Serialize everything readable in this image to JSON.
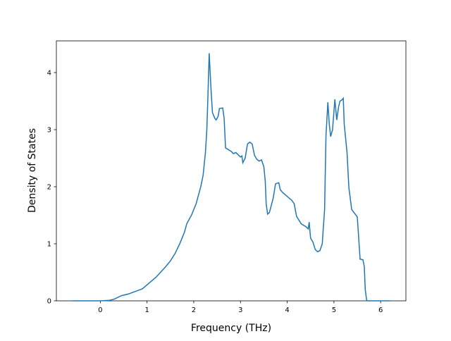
{
  "chart_data": {
    "type": "line",
    "x_label": "Frequency (THz)",
    "y_label": "Density of States",
    "xlim": [
      -0.94,
      6.54
    ],
    "ylim": [
      0,
      4.556
    ],
    "xticks": [
      0,
      1,
      2,
      3,
      4,
      5,
      6
    ],
    "yticks": [
      0,
      1,
      2,
      3,
      4
    ],
    "series": [
      {
        "color": "#1f77b4",
        "x": [
          -0.6,
          0,
          0.2,
          0.3,
          0.45,
          0.6,
          0.8,
          0.9,
          1.0,
          1.2,
          1.4,
          1.5,
          1.6,
          1.7,
          1.75,
          1.8,
          1.85,
          1.95,
          2.05,
          2.15,
          2.2,
          2.25,
          2.28,
          2.3,
          2.33,
          2.37,
          2.4,
          2.45,
          2.48,
          2.52,
          2.55,
          2.62,
          2.65,
          2.68,
          2.8,
          2.85,
          2.9,
          2.95,
          3.0,
          3.03,
          3.05,
          3.1,
          3.15,
          3.2,
          3.25,
          3.3,
          3.35,
          3.4,
          3.45,
          3.5,
          3.53,
          3.55,
          3.58,
          3.62,
          3.7,
          3.75,
          3.82,
          3.85,
          3.9,
          4.0,
          4.1,
          4.15,
          4.2,
          4.3,
          4.4,
          4.45,
          4.47,
          4.5,
          4.55,
          4.6,
          4.65,
          4.7,
          4.75,
          4.8,
          4.83,
          4.87,
          4.9,
          4.93,
          4.97,
          5.02,
          5.06,
          5.1,
          5.13,
          5.17,
          5.2,
          5.22,
          5.28,
          5.32,
          5.38,
          5.5,
          5.53,
          5.56,
          5.62,
          5.65,
          5.67,
          5.7,
          5.72,
          6.2
        ],
        "values": [
          0,
          0,
          0.01,
          0.03,
          0.09,
          0.12,
          0.18,
          0.21,
          0.28,
          0.42,
          0.6,
          0.7,
          0.83,
          1.0,
          1.1,
          1.2,
          1.35,
          1.5,
          1.7,
          2.0,
          2.2,
          2.6,
          3.0,
          3.5,
          4.34,
          3.7,
          3.3,
          3.2,
          3.17,
          3.23,
          3.37,
          3.38,
          3.2,
          2.68,
          2.62,
          2.58,
          2.6,
          2.56,
          2.52,
          2.54,
          2.42,
          2.5,
          2.75,
          2.78,
          2.75,
          2.55,
          2.48,
          2.45,
          2.47,
          2.35,
          2.1,
          1.7,
          1.52,
          1.55,
          1.8,
          2.05,
          2.07,
          1.95,
          1.9,
          1.83,
          1.76,
          1.7,
          1.48,
          1.35,
          1.3,
          1.26,
          1.38,
          1.1,
          1.03,
          0.9,
          0.86,
          0.88,
          1.0,
          1.6,
          2.9,
          3.48,
          3.1,
          2.88,
          3.0,
          3.53,
          3.17,
          3.4,
          3.5,
          3.52,
          3.55,
          3.1,
          2.6,
          1.98,
          1.6,
          1.47,
          1.1,
          0.73,
          0.72,
          0.6,
          0.2,
          0.01,
          0,
          0
        ]
      }
    ]
  }
}
